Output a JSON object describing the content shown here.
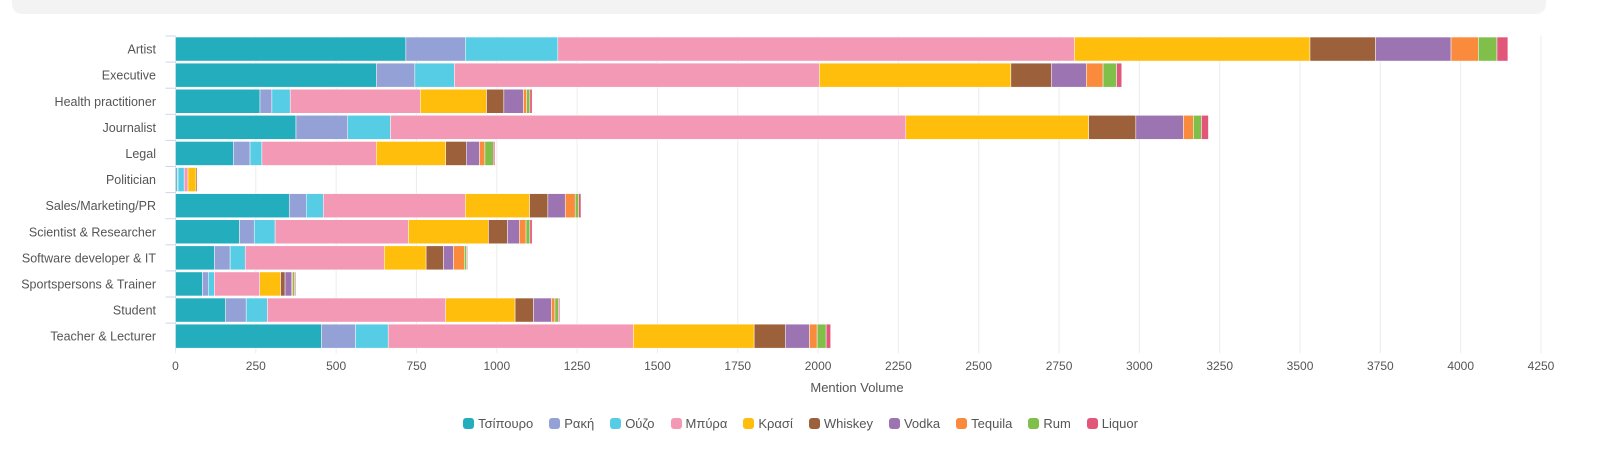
{
  "chart_data": {
    "type": "bar",
    "orientation": "horizontal",
    "stacked": true,
    "title": "",
    "xlabel": "Mention Volume",
    "ylabel": "",
    "xlim": [
      0,
      4250
    ],
    "xticks": [
      0,
      250,
      500,
      750,
      1000,
      1250,
      1500,
      1750,
      2000,
      2250,
      2500,
      2750,
      3000,
      3250,
      3500,
      3750,
      4000,
      4250
    ],
    "grid": true,
    "legend_position": "bottom",
    "categories": [
      "Artist",
      "Executive",
      "Health practitioner",
      "Journalist",
      "Legal",
      "Politician",
      "Sales/Marketing/PR",
      "Scientist & Researcher",
      "Software developer & IT",
      "Sportspersons & Trainer",
      "Student",
      "Teacher & Lecturer"
    ],
    "series": [
      {
        "name": "Τσίπουρο",
        "color": "#24adbd",
        "values": [
          717,
          625,
          263,
          375,
          180,
          5,
          354,
          199,
          121,
          84,
          156,
          454
        ]
      },
      {
        "name": "Ρακή",
        "color": "#93a1d6",
        "values": [
          185,
          120,
          37,
          161,
          52,
          3,
          53,
          46,
          49,
          18,
          64,
          106
        ]
      },
      {
        "name": "Ούζο",
        "color": "#56cde4",
        "values": [
          288,
          123,
          57,
          133,
          37,
          19,
          53,
          65,
          47,
          19,
          66,
          102
        ]
      },
      {
        "name": "Μπύρα",
        "color": "#f398b5",
        "values": [
          1608,
          1136,
          405,
          1604,
          356,
          12,
          442,
          415,
          433,
          141,
          555,
          763
        ]
      },
      {
        "name": "Κρασί",
        "color": "#ffbe0c",
        "values": [
          733,
          596,
          206,
          569,
          216,
          25,
          200,
          249,
          130,
          65,
          216,
          376
        ]
      },
      {
        "name": "Whiskey",
        "color": "#9c613a",
        "values": [
          204,
          126,
          54,
          147,
          64,
          4,
          57,
          59,
          54,
          14,
          57,
          97
        ]
      },
      {
        "name": "Vodka",
        "color": "#9c74b2",
        "values": [
          235,
          109,
          61,
          148,
          41,
          1,
          54,
          37,
          31,
          21,
          56,
          75
        ]
      },
      {
        "name": "Tequila",
        "color": "#fa8a3c",
        "values": [
          85,
          52,
          10,
          31,
          17,
          0,
          31,
          21,
          34,
          3,
          11,
          24
        ]
      },
      {
        "name": "Rum",
        "color": "#7fbf4a",
        "values": [
          58,
          42,
          10,
          25,
          26,
          0,
          11,
          12,
          7,
          6,
          11,
          28
        ]
      },
      {
        "name": "Liquor",
        "color": "#e2567a",
        "values": [
          34,
          16,
          7,
          22,
          5,
          1,
          7,
          7,
          3,
          3,
          4,
          14
        ]
      }
    ]
  }
}
